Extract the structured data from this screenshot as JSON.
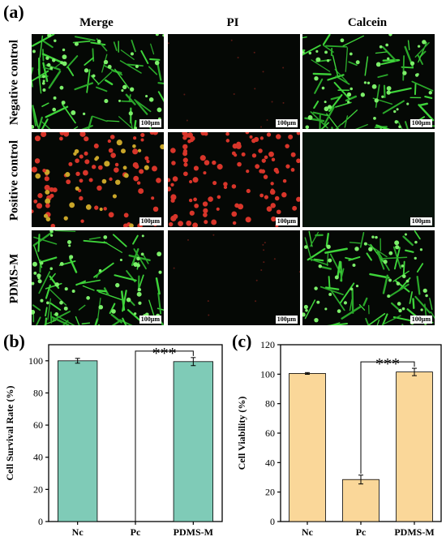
{
  "panel_a": {
    "letter": "(a)",
    "columns": [
      "Merge",
      "PI",
      "Calcein"
    ],
    "rows": [
      "Negative control",
      "Positive control",
      "PDMS-M"
    ],
    "scale_label": "100μm"
  },
  "panel_b": {
    "letter": "(b)"
  },
  "panel_c": {
    "letter": "(c)"
  },
  "chart_data": [
    {
      "type": "bar",
      "categories": [
        "Nc",
        "Pc",
        "PDMS-M"
      ],
      "values": [
        100,
        0,
        99.5
      ],
      "errors": [
        1.5,
        0,
        2.5
      ],
      "xlabel": "",
      "ylabel": "Cell Survival Rate (%)",
      "ylim": [
        0,
        110
      ],
      "yticks": [
        0,
        20,
        40,
        60,
        80,
        100
      ],
      "bar_color": "#7fcbb7",
      "significance": {
        "from": "Pc",
        "to": "PDMS-M",
        "label": "***"
      }
    },
    {
      "type": "bar",
      "categories": [
        "Nc",
        "Pc",
        "PDMS-M"
      ],
      "values": [
        100.5,
        28.5,
        101.5
      ],
      "errors": [
        0.6,
        3,
        2.5
      ],
      "xlabel": "",
      "ylabel": "Cell Viability (%)",
      "ylim": [
        0,
        120
      ],
      "yticks": [
        0,
        20,
        40,
        60,
        80,
        100,
        120
      ],
      "bar_color": "#fad799",
      "significance": {
        "from": "Pc",
        "to": "PDMS-M",
        "label": "***"
      }
    }
  ]
}
